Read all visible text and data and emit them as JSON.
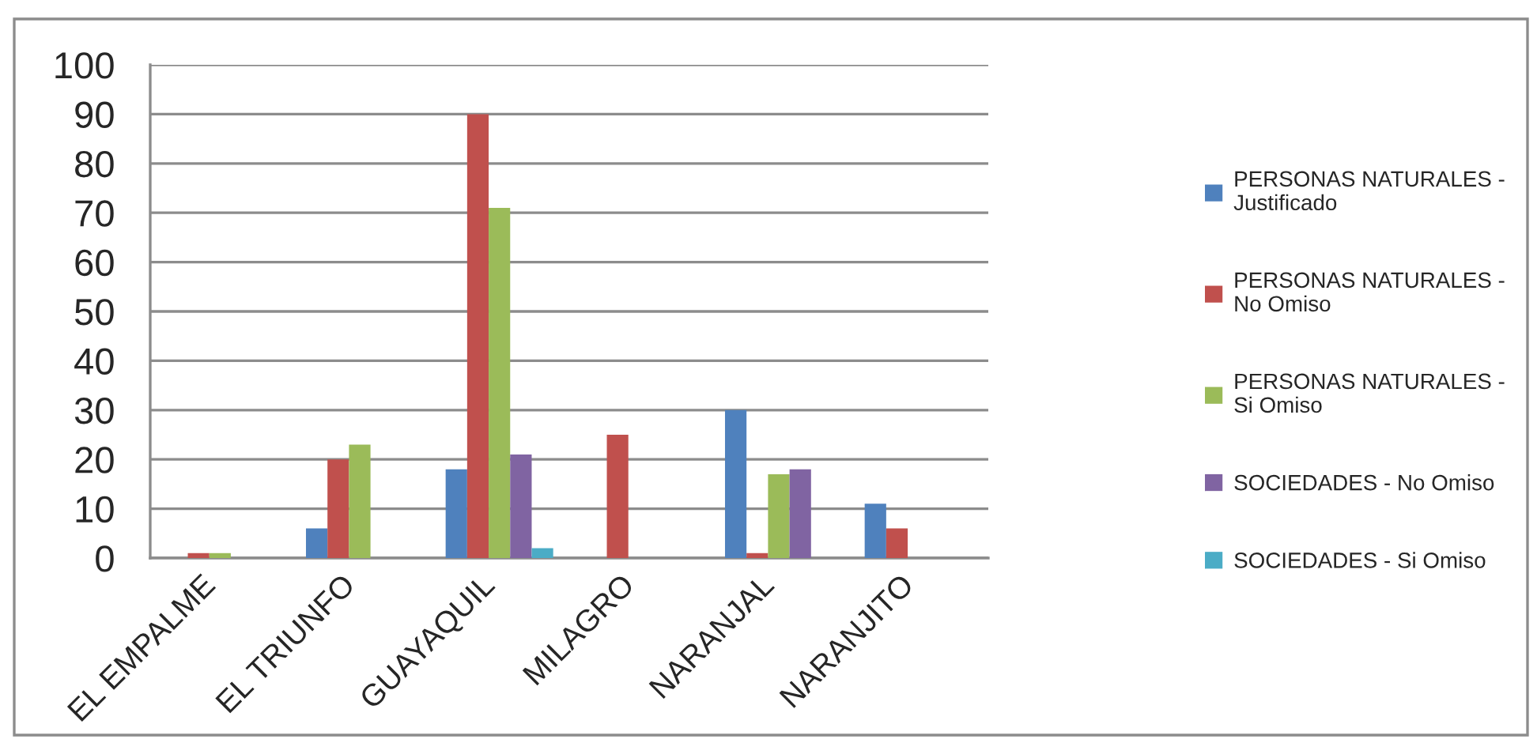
{
  "chart_data": {
    "type": "bar",
    "categories": [
      "EL EMPALME",
      "EL TRIUNFO",
      "GUAYAQUIL",
      "MILAGRO",
      "NARANJAL",
      "NARANJITO"
    ],
    "series": [
      {
        "name": "PERSONAS NATURALES - Justificado",
        "color": "#4f81bd",
        "values": [
          null,
          6,
          18,
          null,
          30,
          11
        ]
      },
      {
        "name": "PERSONAS NATURALES - No Omiso",
        "color": "#c0504d",
        "values": [
          1,
          20,
          90,
          25,
          1,
          6
        ]
      },
      {
        "name": "PERSONAS NATURALES - Si Omiso",
        "color": "#9bbb59",
        "values": [
          1,
          23,
          71,
          null,
          17,
          null
        ]
      },
      {
        "name": "SOCIEDADES - No Omiso",
        "color": "#8064a2",
        "values": [
          null,
          null,
          21,
          null,
          18,
          null
        ]
      },
      {
        "name": "SOCIEDADES - Si Omiso",
        "color": "#4bacc6",
        "values": [
          null,
          null,
          2,
          null,
          null,
          null
        ]
      }
    ],
    "ylim": [
      0,
      100
    ],
    "yticks": [
      0,
      10,
      20,
      30,
      40,
      50,
      60,
      70,
      80,
      90,
      100
    ],
    "grid": "y",
    "legend": "right"
  }
}
